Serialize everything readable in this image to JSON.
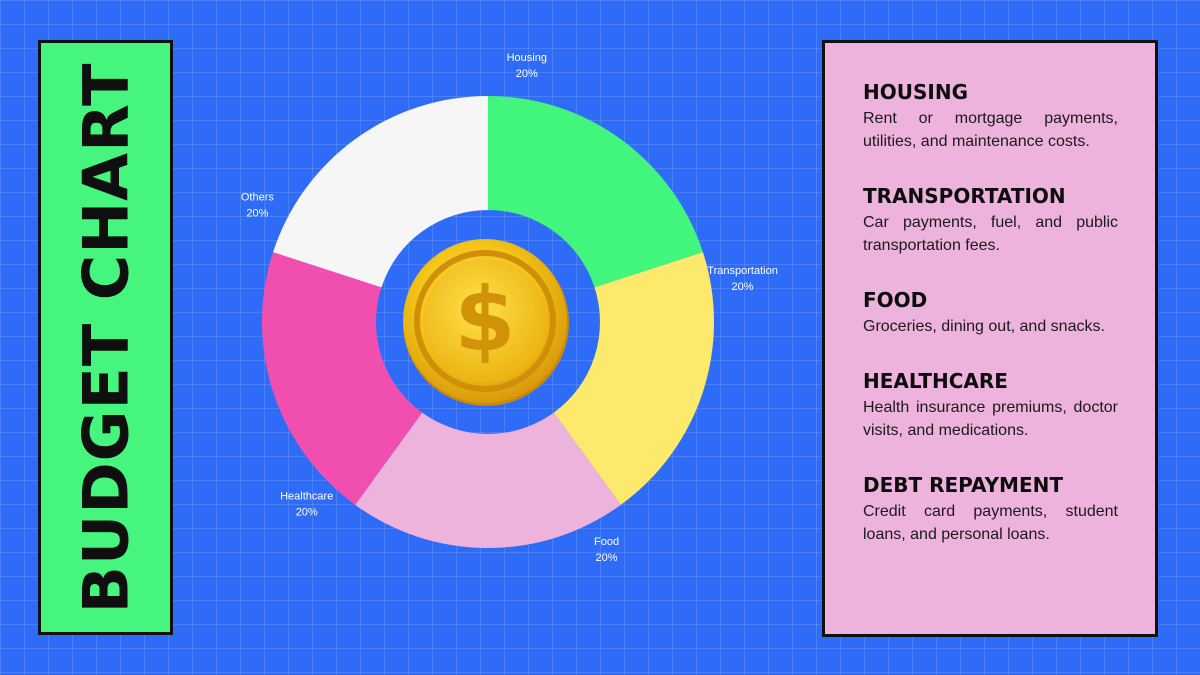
{
  "title": "BUDGET CHART",
  "chart_data": {
    "type": "pie",
    "title": "BUDGET CHART",
    "slices": [
      {
        "label": "Housing",
        "value": 20,
        "value_label": "20%",
        "color": "#42f57c"
      },
      {
        "label": "Transportation",
        "value": 20,
        "value_label": "20%",
        "color": "#fde96b"
      },
      {
        "label": "Food",
        "value": 20,
        "value_label": "20%",
        "color": "#eeb3dc"
      },
      {
        "label": "Healthcare",
        "value": 20,
        "value_label": "20%",
        "color": "#f04fb0"
      },
      {
        "label": "Others",
        "value": 20,
        "value_label": "20%",
        "color": "#f6f6f6"
      }
    ],
    "center_icon": "dollar-coin-icon"
  },
  "legend": [
    {
      "title": "HOUSING",
      "description": "Rent or mortgage payments, utilities, and maintenance costs."
    },
    {
      "title": "TRANSPORTATION",
      "description": "Car payments, fuel, and public transportation fees."
    },
    {
      "title": "FOOD",
      "description": "Groceries, dining out, and snacks."
    },
    {
      "title": "HEALTHCARE",
      "description": "Health insurance premiums, doctor visits, and medications."
    },
    {
      "title": "DEBT REPAYMENT",
      "description": "Credit card payments, student loans, and personal loans."
    }
  ],
  "colors": {
    "background": "#2e6cf7",
    "title_panel": "#45f57e",
    "legend_panel": "#eeb3dc",
    "coin_gold": "#f2c21b"
  }
}
